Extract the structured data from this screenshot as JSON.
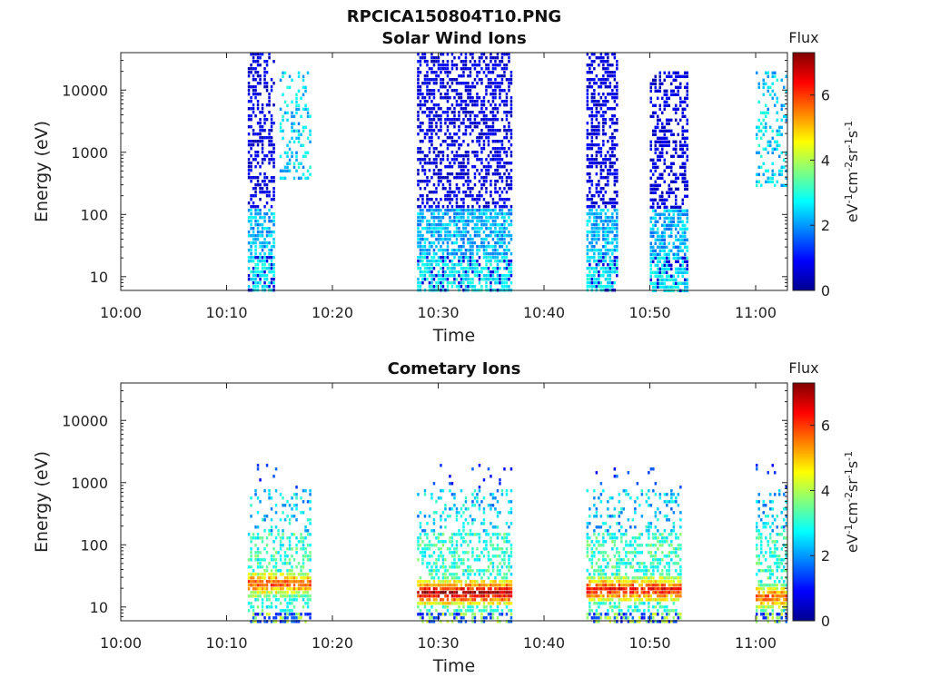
{
  "page": {
    "filename": "RPCICA150804T10.PNG"
  },
  "chart_data": [
    {
      "type": "heatmap",
      "title": "Solar Wind Ions",
      "xlabel": "Time",
      "ylabel": "Energy (eV)",
      "y_scale": "log",
      "x_range": [
        "10:00",
        "11:03"
      ],
      "x_ticks": [
        "10:00",
        "10:10",
        "10:20",
        "10:30",
        "10:40",
        "10:50",
        "11:00"
      ],
      "y_range_eV": [
        6,
        40000
      ],
      "y_ticks": [
        "10",
        "100",
        "1000",
        "10000"
      ],
      "colorbar": {
        "title": "Flux",
        "label": "eV-1cm-2sr-1s-1",
        "range": [
          0,
          7.3
        ],
        "ticks": [
          "0",
          "2",
          "4",
          "6"
        ],
        "colormap": "jet"
      },
      "bursts": [
        {
          "t_start": "10:12",
          "t_end": "10:14.5",
          "dominant_energy_band_eV": [
            6,
            40000
          ],
          "typical_flux": 1.0
        },
        {
          "t_start": "10:15",
          "t_end": "10:18",
          "dominant_energy_band_eV": [
            400,
            20000
          ],
          "typical_flux": 2.4
        },
        {
          "t_start": "10:28",
          "t_end": "10:37",
          "dominant_energy_band_eV": [
            6,
            40000
          ],
          "typical_flux": 1.1
        },
        {
          "t_start": "10:44",
          "t_end": "10:47",
          "dominant_energy_band_eV": [
            6,
            40000
          ],
          "typical_flux": 1.0
        },
        {
          "t_start": "10:50",
          "t_end": "10:53.5",
          "dominant_energy_band_eV": [
            6,
            20000
          ],
          "typical_flux": 1.0
        },
        {
          "t_start": "11:00",
          "t_end": "11:03",
          "dominant_energy_band_eV": [
            300,
            20000
          ],
          "typical_flux": 2.5
        }
      ]
    },
    {
      "type": "heatmap",
      "title": "Cometary Ions",
      "xlabel": "Time",
      "ylabel": "Energy (eV)",
      "y_scale": "log",
      "x_range": [
        "10:00",
        "11:03"
      ],
      "x_ticks": [
        "10:00",
        "10:10",
        "10:20",
        "10:30",
        "10:40",
        "10:50",
        "11:00"
      ],
      "y_range_eV": [
        6,
        40000
      ],
      "y_ticks": [
        "10",
        "100",
        "1000",
        "10000"
      ],
      "colorbar": {
        "title": "Flux",
        "label": "eV-1cm-2sr-1s-1",
        "range": [
          0,
          7.3
        ],
        "ticks": [
          "0",
          "2",
          "4",
          "6"
        ],
        "colormap": "jet"
      },
      "bursts": [
        {
          "t_start": "10:12",
          "t_end": "10:18",
          "peak_energy_eV": 25,
          "peak_flux": 6.0
        },
        {
          "t_start": "10:28",
          "t_end": "10:37",
          "peak_energy_eV": 18,
          "peak_flux": 7.0
        },
        {
          "t_start": "10:44",
          "t_end": "10:53",
          "peak_energy_eV": 20,
          "peak_flux": 6.5
        },
        {
          "t_start": "11:00",
          "t_end": "11:03",
          "peak_energy_eV": 15,
          "peak_flux": 6.0
        }
      ]
    }
  ]
}
